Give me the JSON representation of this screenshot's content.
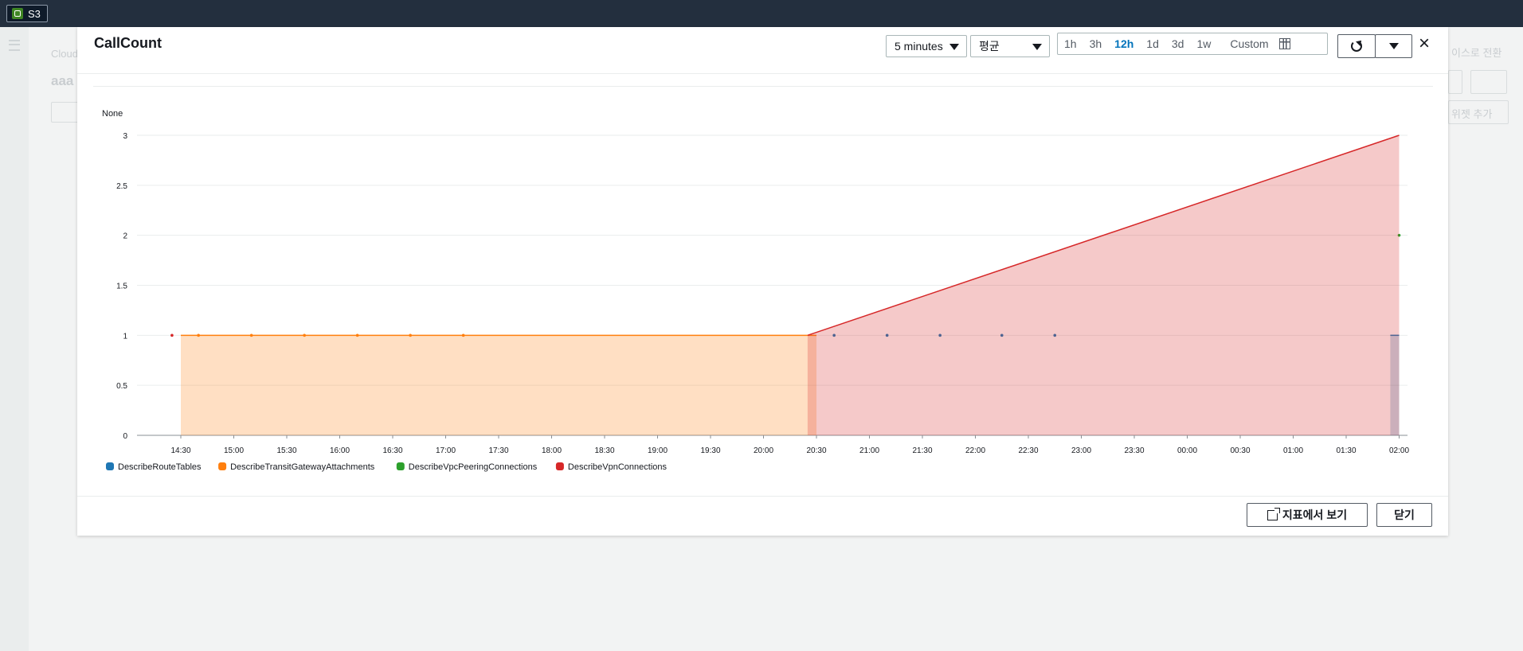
{
  "topbar": {
    "service_label": "S3"
  },
  "background": {
    "crumb": "Cloud",
    "title": "aaa",
    "right_link": "이스로 전환",
    "right_button": "위젯 추가"
  },
  "modal": {
    "title": "CallCount",
    "period_select": "5 minutes",
    "stat_select": "평균",
    "ranges": [
      "1h",
      "3h",
      "12h",
      "1d",
      "3d",
      "1w"
    ],
    "active_range": "12h",
    "custom_label": "Custom",
    "unit_label": "None",
    "footer": {
      "open_metrics": "지표에서 보기",
      "close": "닫기"
    }
  },
  "chart_data": {
    "type": "area",
    "ylim": [
      0,
      3
    ],
    "yticks": [
      "0",
      "0.5",
      "1",
      "1.5",
      "2",
      "2.5",
      "3"
    ],
    "xticks": [
      "14:30",
      "15:00",
      "15:30",
      "16:00",
      "16:30",
      "17:00",
      "17:30",
      "18:00",
      "18:30",
      "19:00",
      "19:30",
      "20:00",
      "20:30",
      "21:00",
      "21:30",
      "22:00",
      "22:30",
      "23:00",
      "23:30",
      "00:00",
      "00:30",
      "01:00",
      "01:30",
      "02:00"
    ],
    "series": [
      {
        "name": "DescribeRouteTables",
        "color": "#1f77b4",
        "area": [
          [
            "01:55",
            1
          ],
          [
            "02:00",
            1
          ]
        ],
        "points": [
          [
            "20:40",
            1
          ],
          [
            "21:10",
            1
          ],
          [
            "21:40",
            1
          ],
          [
            "22:15",
            1
          ],
          [
            "22:45",
            1
          ]
        ]
      },
      {
        "name": "DescribeTransitGatewayAttachments",
        "color": "#ff7f0e",
        "area": [
          [
            "14:30",
            1
          ],
          [
            "20:30",
            1
          ]
        ],
        "points": [
          [
            "14:40",
            1
          ],
          [
            "15:10",
            1
          ],
          [
            "15:40",
            1
          ],
          [
            "16:10",
            1
          ],
          [
            "16:40",
            1
          ],
          [
            "17:10",
            1
          ]
        ]
      },
      {
        "name": "DescribeVpcPeeringConnections",
        "color": "#2ca02c",
        "area": [],
        "points": [
          [
            "02:00",
            2
          ]
        ]
      },
      {
        "name": "DescribeVpnConnections",
        "color": "#d62728",
        "area": [
          [
            "20:25",
            1
          ],
          [
            "02:00",
            3
          ]
        ],
        "points": [
          [
            "14:25",
            1
          ]
        ]
      }
    ]
  }
}
